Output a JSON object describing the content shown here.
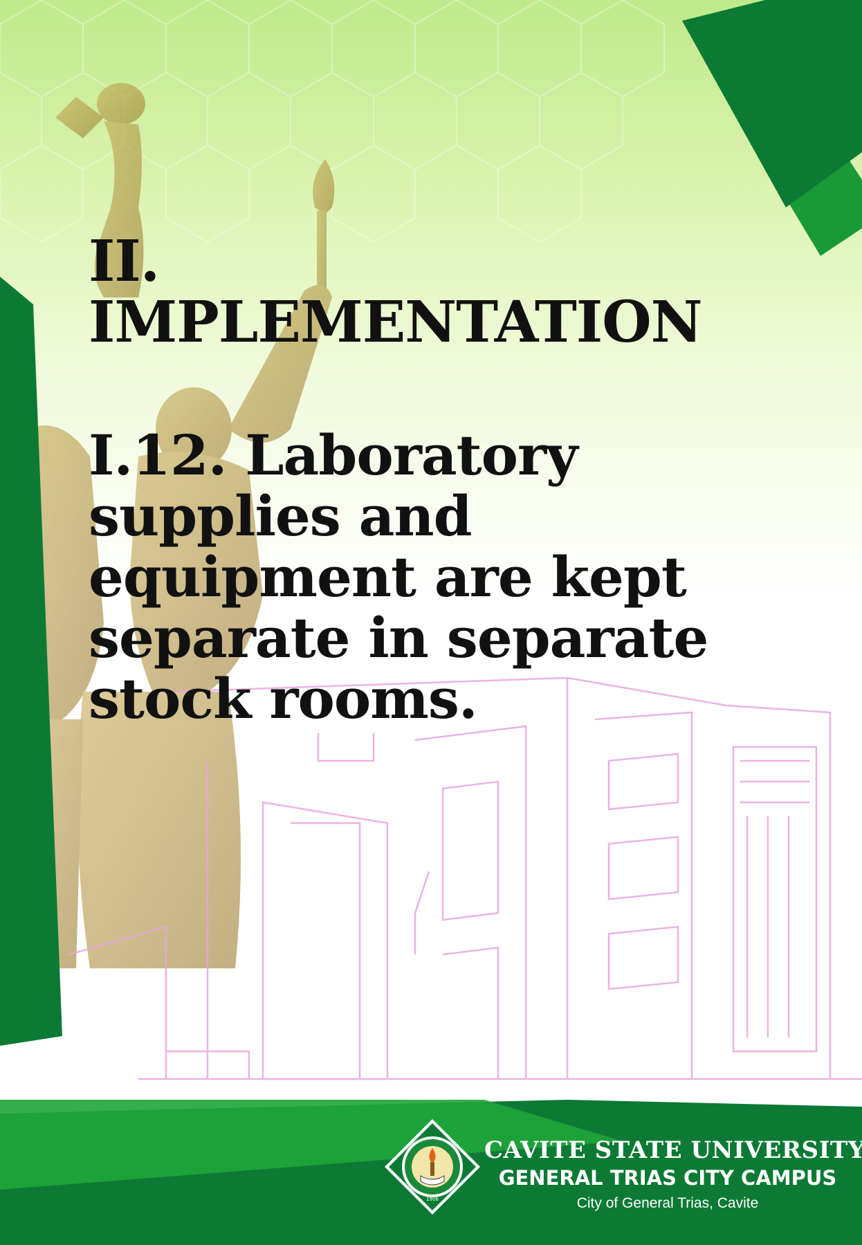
{
  "section": {
    "heading": "II. IMPLEMENTATION",
    "item": "I.12. Laboratory supplies and equipment are kept separate in separate stock rooms."
  },
  "footer": {
    "university": "CAVITE STATE UNIVERSITY",
    "campus": "GENERAL TRIAS CITY CAMPUS",
    "location": "City of General Trias, Cavite",
    "seal_year": "1906"
  },
  "colors": {
    "dark_green": "#0c7a35",
    "bright_green": "#1fa53a",
    "light_green": "#bfe98a",
    "outline_pink": "#e7a6de",
    "text": "#111111"
  }
}
